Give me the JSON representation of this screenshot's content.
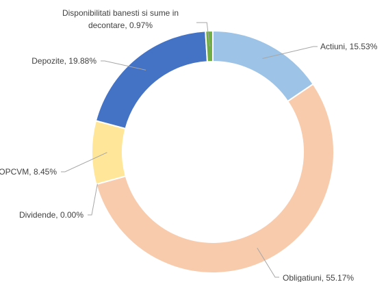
{
  "chart_data": {
    "type": "pie",
    "variant": "doughnut",
    "title": "",
    "legend": "none",
    "colors": [
      "#9dc3e6",
      "#f8cbad",
      "#ffd966",
      "#ffe699",
      "#4472c4",
      "#70ad47"
    ],
    "slices": [
      {
        "name": "Actiuni",
        "value": 15.53,
        "label": "Actiuni, 15.53%",
        "color": "#9dc3e6"
      },
      {
        "name": "Obligatiuni",
        "value": 55.17,
        "label": "Obligatiuni, 55.17%",
        "color": "#f8cbad"
      },
      {
        "name": "Dividende",
        "value": 0.0,
        "label": "Dividende, 0.00%",
        "color": "#ffd966"
      },
      {
        "name": "OPCVM",
        "value": 8.45,
        "label": "OPCVM, 8.45%",
        "color": "#ffe699"
      },
      {
        "name": "Depozite",
        "value": 19.88,
        "label": "Depozite, 19.88%",
        "color": "#4472c4"
      },
      {
        "name": "Disponibilitati banesti si sume in decontare",
        "value": 0.97,
        "label_lines": [
          "Disponibilitati banesti si sume in",
          "decontare, 0.97%"
        ],
        "color": "#70ad47"
      }
    ]
  }
}
